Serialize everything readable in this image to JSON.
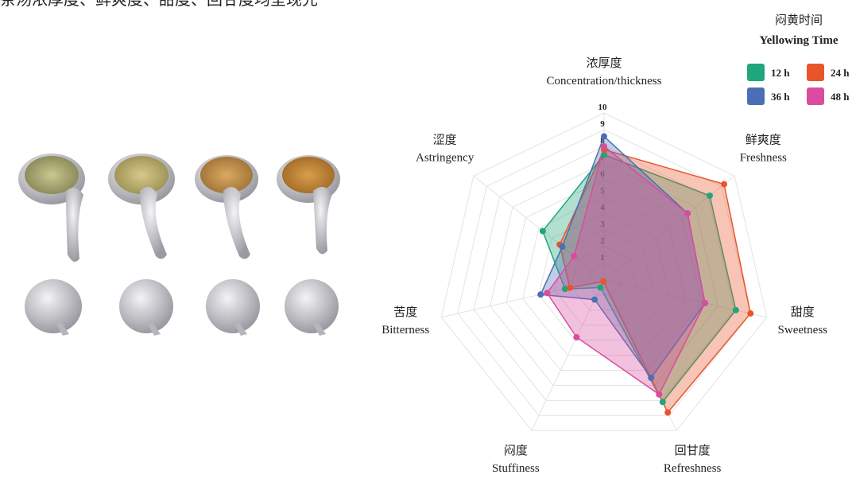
{
  "header": {
    "text": "茶汤浓厚度、鲜爽度、甜度、回甘度均呈现先"
  },
  "chart_data": {
    "type": "radar",
    "categories": [
      "Concentration/thickness",
      "Freshness",
      "Sweetness",
      "Refreshness",
      "Stuffiness",
      "Bitterness",
      "Astringency"
    ],
    "categories_zh": [
      "浓厚度",
      "鲜爽度",
      "甜度",
      "回甘度",
      "闷度",
      "苦度",
      "涩度"
    ],
    "rlim": [
      0,
      10
    ],
    "rticks": [
      1,
      2,
      3,
      4,
      5,
      6,
      7,
      8,
      9,
      10
    ],
    "grid": true,
    "legend_title_zh": "闷黄时间",
    "legend_title": "Yellowing Time",
    "legend": "upper right",
    "series": [
      {
        "name": "12 h",
        "color": "#1fa67a",
        "values": [
          7.5,
          8.1,
          8.1,
          8.1,
          0.5,
          2.4,
          4.7
        ]
      },
      {
        "name": "24 h",
        "color": "#e8552b",
        "values": [
          7.8,
          9.2,
          9.0,
          8.8,
          0.1,
          2.1,
          3.4
        ]
      },
      {
        "name": "36 h",
        "color": "#4a6fb5",
        "values": [
          8.6,
          6.4,
          6.2,
          6.5,
          1.3,
          3.9,
          3.2
        ]
      },
      {
        "name": "48 h",
        "color": "#d94c9e",
        "values": [
          8.0,
          6.4,
          6.2,
          7.6,
          3.8,
          3.5,
          2.3
        ]
      }
    ]
  }
}
